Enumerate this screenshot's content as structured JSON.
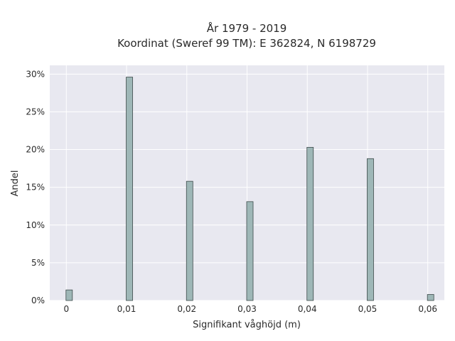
{
  "chart_data": {
    "type": "bar",
    "title_line1": "År 1979 - 2019",
    "title_line2": "Koordinat (Sweref 99 TM): E 362824, N 6198729",
    "xlabel": "Signifikant våghöjd (m)",
    "ylabel": "Andel",
    "x": [
      0,
      0.01,
      0.02,
      0.03,
      0.04,
      0.05,
      0.06
    ],
    "values": [
      1.4,
      29.6,
      15.8,
      13.1,
      20.3,
      18.8,
      0.8
    ],
    "x_ticks": [
      0,
      0.01,
      0.02,
      0.03,
      0.04,
      0.05,
      0.06
    ],
    "x_tick_labels": [
      "0",
      "0,01",
      "0,02",
      "0,03",
      "0,04",
      "0,05",
      "0,06"
    ],
    "y_ticks": [
      0,
      5,
      10,
      15,
      20,
      25,
      30
    ],
    "y_tick_labels": [
      "0%",
      "5%",
      "10%",
      "15%",
      "20%",
      "25%",
      "30%"
    ],
    "xlim": [
      -0.00275,
      0.06275
    ],
    "ylim": [
      0,
      31.16
    ],
    "grid": true,
    "colors": {
      "plot_background": "#e8e8f0",
      "grid": "#ffffff",
      "bar_fill": "#9eb7b7",
      "bar_stroke": "#3d4a4a"
    }
  }
}
